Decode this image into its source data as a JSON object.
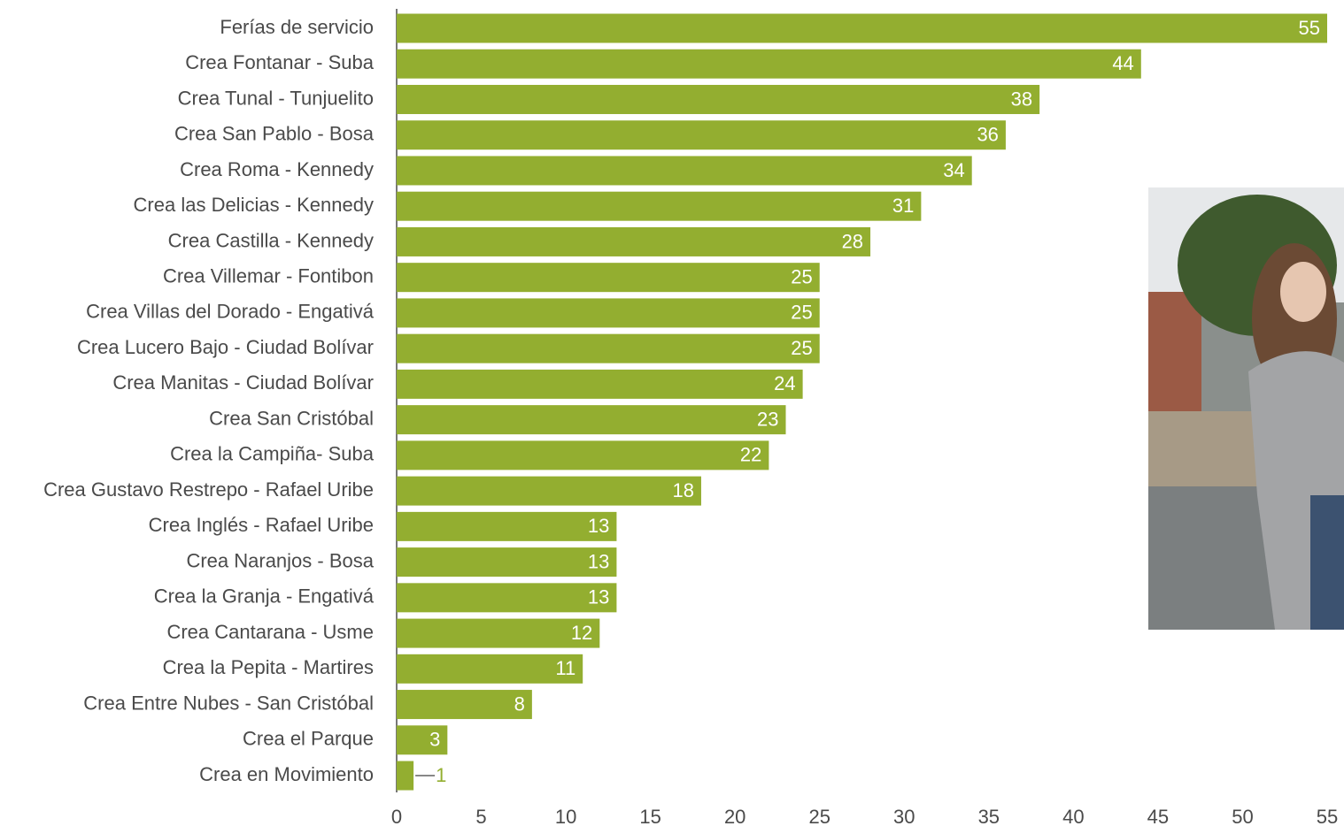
{
  "chart_data": {
    "type": "bar",
    "orientation": "horizontal",
    "categories": [
      "Ferías de servicio",
      "Crea Fontanar - Suba",
      "Crea Tunal - Tunjuelito",
      "Crea San Pablo - Bosa",
      "Crea Roma - Kennedy",
      "Crea las Delicias - Kennedy",
      "Crea Castilla - Kennedy",
      "Crea Villemar - Fontibon",
      "Crea Villas del Dorado - Engativá",
      "Crea Lucero Bajo - Ciudad Bolívar",
      "Crea Manitas - Ciudad Bolívar",
      "Crea San Cristóbal",
      "Crea la Campiña- Suba",
      "Crea Gustavo Restrepo - Rafael Uribe",
      "Crea Inglés - Rafael Uribe",
      "Crea Naranjos - Bosa",
      "Crea la Granja - Engativá",
      "Crea Cantarana - Usme",
      "Crea la Pepita - Martires",
      "Crea Entre Nubes - San Cristóbal",
      "Crea el Parque",
      "Crea en Movimiento"
    ],
    "values": [
      55,
      44,
      38,
      36,
      34,
      31,
      28,
      25,
      25,
      25,
      24,
      23,
      22,
      18,
      13,
      13,
      13,
      12,
      11,
      8,
      3,
      1
    ],
    "color": "#93ae30",
    "xlim": [
      0,
      55
    ],
    "xticks": [
      0,
      5,
      10,
      15,
      20,
      25,
      30,
      35,
      40,
      45,
      50,
      55
    ],
    "grid": false
  }
}
